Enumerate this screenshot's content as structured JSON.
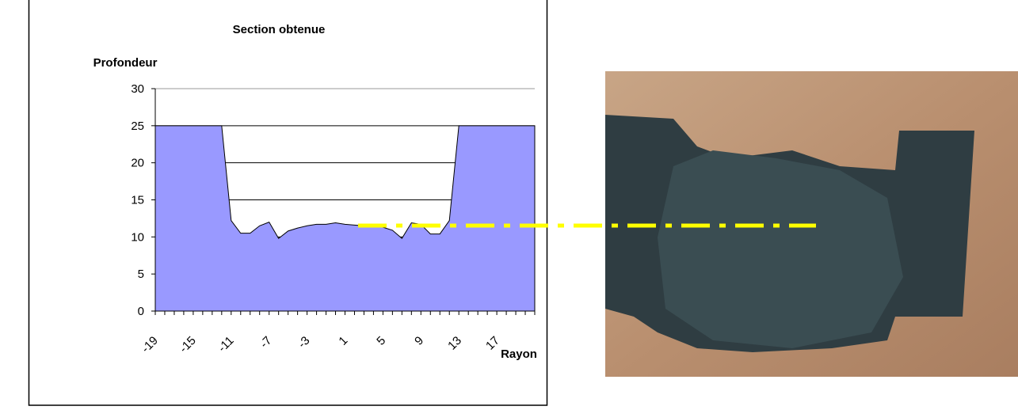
{
  "chart_data": {
    "type": "area",
    "title": "Section obtenue",
    "y_label": "Profondeur",
    "x_label": "Rayon",
    "categories": [
      "-19",
      null,
      null,
      null,
      "-15",
      null,
      null,
      null,
      "-11",
      null,
      null,
      null,
      "-7",
      null,
      null,
      null,
      "-3",
      null,
      null,
      null,
      "1",
      null,
      null,
      null,
      "5",
      null,
      null,
      null,
      "9",
      null,
      null,
      null,
      "13",
      null,
      null,
      null,
      "17",
      null,
      null,
      null,
      null
    ],
    "values": [
      25,
      25,
      25,
      25,
      25,
      25,
      25,
      25,
      12.2,
      10.5,
      10.5,
      11.5,
      12,
      9.8,
      10.8,
      11.2,
      11.5,
      11.7,
      11.7,
      11.9,
      11.7,
      11.6,
      11.5,
      11.5,
      11.3,
      10.9,
      9.8,
      11.9,
      11.7,
      10.4,
      10.4,
      12.2,
      25,
      25,
      25,
      25,
      25,
      25,
      25,
      25,
      25
    ],
    "color": "#9999ff",
    "ylim": [
      0,
      30
    ],
    "yticks": [
      0,
      5,
      10,
      15,
      20,
      25,
      30
    ],
    "grid": true
  }
}
